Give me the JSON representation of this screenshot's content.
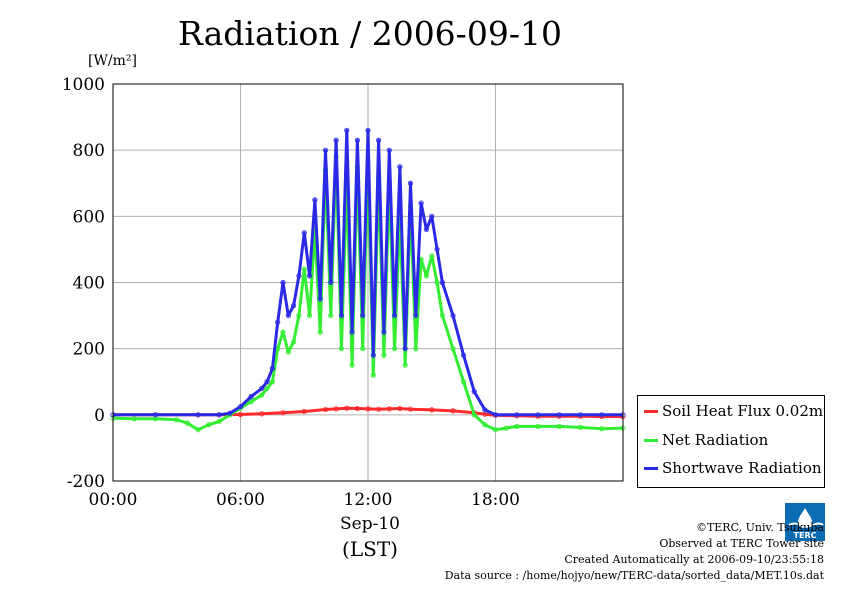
{
  "chart_data": {
    "type": "line",
    "title": "Radiation / 2006-09-10",
    "ylabel": "[W/m²]",
    "xlabel_date": "Sep-10",
    "xlabel_tz": "(LST)",
    "ylim": [
      -200,
      1000
    ],
    "xlim_hours": [
      0,
      24
    ],
    "y_ticks": [
      "1000",
      "800",
      "600",
      "400",
      "200",
      "0",
      "-200"
    ],
    "x_ticks": [
      "00:00",
      "06:00",
      "12:00",
      "18:00"
    ],
    "grid": true,
    "legend_position": "bottom-right",
    "series": [
      {
        "name": "Soil Heat Flux 0.02m",
        "color": "#ff2a2a",
        "x": [
          0,
          2,
          4,
          5,
          6,
          7,
          8,
          9,
          10,
          10.5,
          11,
          11.5,
          12,
          12.5,
          13,
          13.5,
          14,
          15,
          16,
          17,
          17.5,
          18,
          19,
          20,
          21,
          22,
          23,
          24
        ],
        "y": [
          0,
          0,
          0,
          0,
          1,
          3,
          6,
          10,
          16,
          18,
          20,
          19,
          18,
          17,
          18,
          19,
          17,
          15,
          12,
          6,
          2,
          -1,
          -3,
          -4,
          -4,
          -4,
          -5,
          -5
        ]
      },
      {
        "name": "Net Radiation",
        "color": "#33ee33",
        "x": [
          0,
          1,
          2,
          3,
          3.5,
          4,
          4.5,
          5,
          5.5,
          6,
          6.5,
          7,
          7.25,
          7.5,
          7.75,
          8,
          8.25,
          8.5,
          8.75,
          9,
          9.25,
          9.5,
          9.75,
          10,
          10.25,
          10.5,
          10.75,
          11,
          11.25,
          11.5,
          11.75,
          12,
          12.25,
          12.5,
          12.75,
          13,
          13.25,
          13.5,
          13.75,
          14,
          14.25,
          14.5,
          14.75,
          15,
          15.25,
          15.5,
          16,
          16.5,
          17,
          17.5,
          18,
          18.5,
          19,
          20,
          21,
          22,
          23,
          24
        ],
        "y": [
          -10,
          -12,
          -12,
          -15,
          -25,
          -45,
          -30,
          -20,
          0,
          20,
          40,
          60,
          80,
          100,
          200,
          250,
          190,
          220,
          300,
          440,
          300,
          560,
          250,
          740,
          300,
          780,
          200,
          700,
          150,
          750,
          200,
          760,
          120,
          720,
          180,
          700,
          200,
          600,
          150,
          630,
          200,
          470,
          420,
          480,
          400,
          300,
          200,
          100,
          0,
          -30,
          -45,
          -40,
          -35,
          -35,
          -35,
          -38,
          -42,
          -40
        ]
      },
      {
        "name": "Shortwave Radiation",
        "color": "#2a2ae6",
        "x": [
          0,
          2,
          4,
          5,
          5.5,
          6,
          6.5,
          7,
          7.25,
          7.5,
          7.75,
          8,
          8.25,
          8.5,
          8.75,
          9,
          9.25,
          9.5,
          9.75,
          10,
          10.25,
          10.5,
          10.75,
          11,
          11.25,
          11.5,
          11.75,
          12,
          12.25,
          12.5,
          12.75,
          13,
          13.25,
          13.5,
          13.75,
          14,
          14.25,
          14.5,
          14.75,
          15,
          15.25,
          15.5,
          16,
          16.5,
          17,
          17.5,
          18,
          19,
          20,
          21,
          22,
          23,
          24
        ],
        "y": [
          0,
          0,
          0,
          0,
          5,
          25,
          55,
          80,
          100,
          140,
          280,
          400,
          300,
          330,
          420,
          550,
          420,
          650,
          350,
          800,
          400,
          830,
          300,
          860,
          250,
          830,
          300,
          860,
          180,
          830,
          250,
          800,
          300,
          750,
          200,
          700,
          300,
          640,
          560,
          600,
          500,
          400,
          300,
          180,
          70,
          15,
          0,
          0,
          0,
          0,
          0,
          0,
          0
        ]
      }
    ]
  },
  "credits": {
    "copyright": "©TERC, Univ. Tsukuba",
    "observed": "Observed at TERC Tower site",
    "created": "Created Automatically at 2006-09-10/23:55:18",
    "source": "Data source : /home/hojyo/new/TERC-data/sorted_data/MET.10s.dat"
  },
  "logo_text": "TERC"
}
